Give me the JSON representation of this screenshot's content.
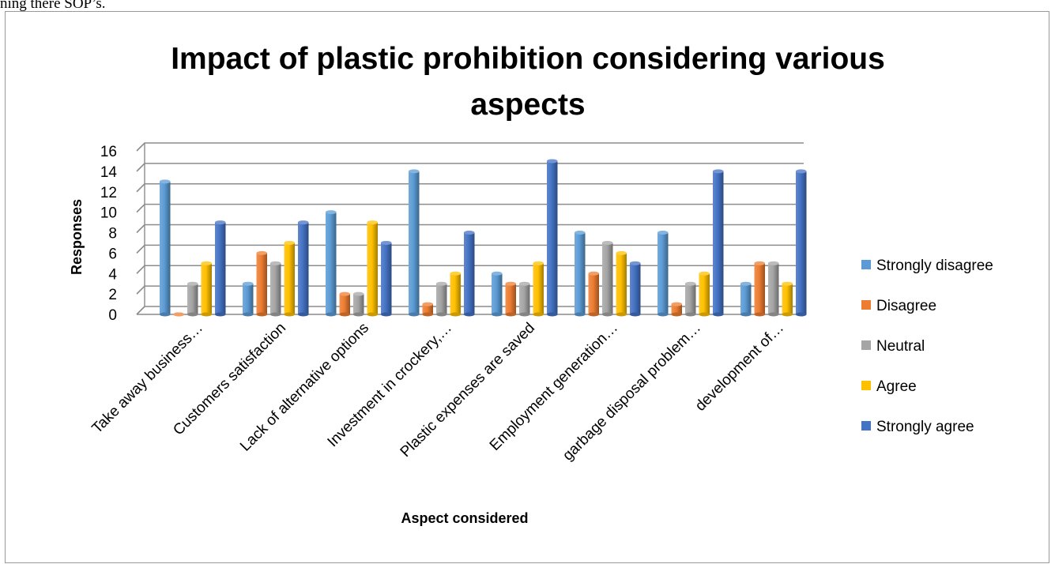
{
  "page_snippet": "ning there SOP’s.",
  "chart_data": {
    "type": "bar",
    "title": "Impact of plastic prohibition considering various aspects",
    "title_lines": [
      "Impact of plastic prohibition considering various",
      "aspects"
    ],
    "xlabel": "Aspect considered",
    "ylabel": "Responses",
    "ylim": [
      0,
      16
    ],
    "yticks": [
      0,
      2,
      4,
      6,
      8,
      10,
      12,
      14,
      16
    ],
    "grid": true,
    "legend_position": "right",
    "categories": [
      "Take away business…",
      "Customers satisfaction",
      "Lack of alternative options",
      "Investment in crockery,…",
      "Plastic expenses are saved",
      "Employment generation…",
      "garbage disposal problem…",
      "development of…"
    ],
    "series": [
      {
        "name": "Strongly disagree",
        "color": "#5b9bd5",
        "values": [
          13,
          3,
          10,
          14,
          4,
          8,
          8,
          3
        ]
      },
      {
        "name": "Disagree",
        "color": "#ed7d31",
        "values": [
          0,
          6,
          2,
          1,
          3,
          4,
          1,
          5
        ]
      },
      {
        "name": "Neutral",
        "color": "#a5a5a5",
        "values": [
          3,
          5,
          2,
          3,
          3,
          7,
          3,
          5
        ]
      },
      {
        "name": "Agree",
        "color": "#ffc000",
        "values": [
          5,
          7,
          9,
          4,
          5,
          6,
          4,
          3
        ]
      },
      {
        "name": "Strongly agree",
        "color": "#4472c4",
        "values": [
          9,
          9,
          7,
          8,
          15,
          5,
          14,
          14
        ]
      }
    ]
  }
}
